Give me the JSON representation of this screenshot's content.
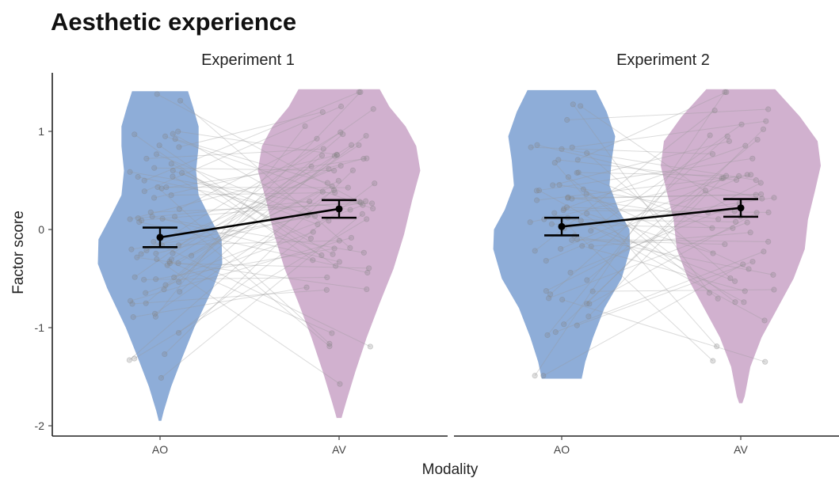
{
  "chart_data": {
    "type": "violin",
    "title": "Aesthetic experience",
    "xlabel": "Modality",
    "ylabel": "Factor score",
    "ylim": [
      -2.05,
      1.6
    ],
    "yticks": [
      -2,
      -1,
      0,
      1
    ],
    "categories": [
      "AO",
      "AV"
    ],
    "colors": {
      "AO": "#7a9fd1",
      "AV": "#c9a3c7",
      "mean_line": "#000000",
      "pair_line": "#999999",
      "point": "#808080"
    },
    "panels": [
      {
        "name": "Experiment 1",
        "means": {
          "AO": -0.08,
          "AV": 0.21
        },
        "ci": {
          "AO": [
            -0.18,
            0.02
          ],
          "AV": [
            0.12,
            0.3
          ]
        },
        "violin_range": {
          "AO": [
            -1.95,
            1.41
          ],
          "AV": [
            -1.92,
            1.43
          ]
        }
      },
      {
        "name": "Experiment 2",
        "means": {
          "AO": 0.03,
          "AV": 0.22
        },
        "ci": {
          "AO": [
            -0.06,
            0.12
          ],
          "AV": [
            0.13,
            0.31
          ]
        },
        "violin_range": {
          "AO": [
            -1.52,
            1.42
          ],
          "AV": [
            -1.77,
            1.43
          ]
        }
      }
    ],
    "grid": false,
    "legend": "none"
  }
}
